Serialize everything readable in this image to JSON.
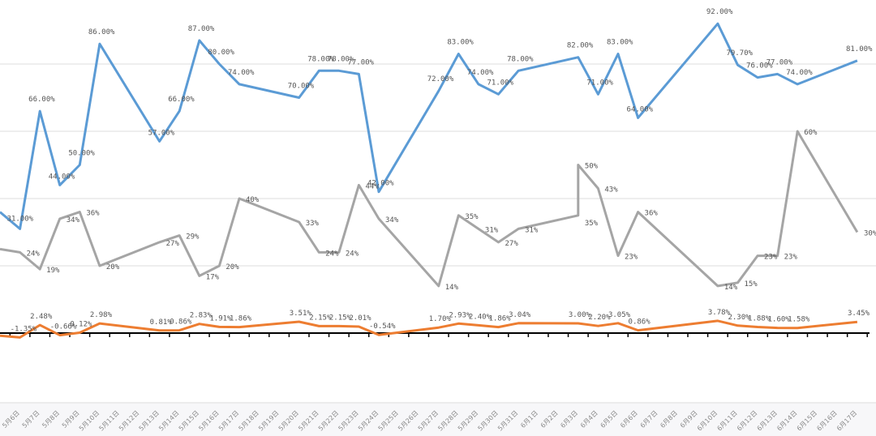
{
  "chart_data": {
    "type": "line",
    "title": "",
    "xlabel": "",
    "ylabel": "",
    "grid": true,
    "legend": "none",
    "categories": [
      "",
      "5月6日",
      "5月7日",
      "5月8日",
      "5月9日",
      "5月10日",
      "5月11日",
      "5月12日",
      "5月13日",
      "5月14日",
      "5月15日",
      "5月16日",
      "5月17日",
      "5月18日",
      "5月19日",
      "5月20日",
      "5月21日",
      "5月22日",
      "5月23日",
      "5月24日",
      "5月25日",
      "5月26日",
      "5月27日",
      "5月28日",
      "5月29日",
      "5月30日",
      "5月31日",
      "6月1日",
      "6月2日",
      "6月3日",
      "6月4日",
      "6月5日",
      "6月6日",
      "6月7日",
      "6月8日",
      "6月9日",
      "6月10日",
      "6月11日",
      "6月12日",
      "6月13日",
      "6月14日",
      "6月15日",
      "6月16日",
      "6月17日"
    ],
    "primary_axis": {
      "ylim": [
        0,
        100
      ],
      "gridlines": [
        20,
        40,
        60,
        80
      ]
    },
    "secondary_axis": {
      "ylim": [
        -2,
        100
      ]
    },
    "series": [
      {
        "name": "series-blue",
        "color": "#5b9bd5",
        "axis": "primary",
        "points": [
          {
            "i": 0,
            "v": 36,
            "label": null
          },
          {
            "i": 1,
            "v": 31,
            "label": "31.00%"
          },
          {
            "i": 2,
            "v": 66,
            "label": "66.00%"
          },
          {
            "i": 3,
            "v": 44,
            "label": "44.00%"
          },
          {
            "i": 4,
            "v": 50,
            "label": "50.00%"
          },
          {
            "i": 5,
            "v": 86,
            "label": "86.00%"
          },
          {
            "i": 8,
            "v": 57,
            "label": "57.00%"
          },
          {
            "i": 9,
            "v": 66,
            "label": "66.00%"
          },
          {
            "i": 10,
            "v": 87,
            "label": "87.00%"
          },
          {
            "i": 11,
            "v": 80,
            "label": "80.00%"
          },
          {
            "i": 12,
            "v": 74,
            "label": "74.00%"
          },
          {
            "i": 15,
            "v": 70,
            "label": "70.00%"
          },
          {
            "i": 16,
            "v": 78,
            "label": "78.00%"
          },
          {
            "i": 17,
            "v": 78,
            "label": "78.00%"
          },
          {
            "i": 18,
            "v": 77,
            "label": "77.00%"
          },
          {
            "i": 19,
            "v": 42,
            "label": "42.00%"
          },
          {
            "i": 22,
            "v": 72,
            "label": "72.00%"
          },
          {
            "i": 23,
            "v": 83,
            "label": "83.00%"
          },
          {
            "i": 24,
            "v": 74,
            "label": "74.00%"
          },
          {
            "i": 25,
            "v": 71,
            "label": "71.00%"
          },
          {
            "i": 26,
            "v": 78,
            "label": "78.00%"
          },
          {
            "i": 29,
            "v": 82,
            "label": "82.00%"
          },
          {
            "i": 30,
            "v": 71,
            "label": "71.00%"
          },
          {
            "i": 31,
            "v": 83,
            "label": "83.00%"
          },
          {
            "i": 32,
            "v": 64,
            "label": "64.00%"
          },
          {
            "i": 36,
            "v": 92,
            "label": "92.00%"
          },
          {
            "i": 37,
            "v": 79.7,
            "label": "79.70%"
          },
          {
            "i": 38,
            "v": 76,
            "label": "76.00%"
          },
          {
            "i": 39,
            "v": 77,
            "label": "77.00%"
          },
          {
            "i": 40,
            "v": 74,
            "label": "74.00%"
          },
          {
            "i": 43,
            "v": 81,
            "label": "81.00%"
          }
        ]
      },
      {
        "name": "series-gray",
        "color": "#a5a5a5",
        "axis": "primary",
        "points": [
          {
            "i": 0,
            "v": 25,
            "label": null
          },
          {
            "i": 1,
            "v": 24,
            "label": "24%"
          },
          {
            "i": 2,
            "v": 19,
            "label": "19%"
          },
          {
            "i": 3,
            "v": 34,
            "label": "34%"
          },
          {
            "i": 4,
            "v": 36,
            "label": "36%"
          },
          {
            "i": 5,
            "v": 20,
            "label": "20%"
          },
          {
            "i": 8,
            "v": 27,
            "label": "27%"
          },
          {
            "i": 9,
            "v": 29,
            "label": "29%"
          },
          {
            "i": 10,
            "v": 17,
            "label": "17%"
          },
          {
            "i": 11,
            "v": 20,
            "label": "20%"
          },
          {
            "i": 12,
            "v": 40,
            "label": "40%"
          },
          {
            "i": 15,
            "v": 33,
            "label": "33%"
          },
          {
            "i": 16,
            "v": 24,
            "label": "24%"
          },
          {
            "i": 17,
            "v": 24,
            "label": "24%"
          },
          {
            "i": 18,
            "v": 44,
            "label": "44%"
          },
          {
            "i": 19,
            "v": 34,
            "label": "34%"
          },
          {
            "i": 22,
            "v": 14,
            "label": "14%"
          },
          {
            "i": 23,
            "v": 35,
            "label": "35%"
          },
          {
            "i": 24,
            "v": 31,
            "label": "31%"
          },
          {
            "i": 25,
            "v": 27,
            "label": "27%"
          },
          {
            "i": 26,
            "v": 31,
            "label": "31%"
          },
          {
            "i": 29,
            "v": 35,
            "label": "35%"
          },
          {
            "i": 29,
            "v": 50,
            "label": "50%"
          },
          {
            "i": 30,
            "v": 43,
            "label": "43%"
          },
          {
            "i": 31,
            "v": 23,
            "label": "23%"
          },
          {
            "i": 32,
            "v": 36,
            "label": "36%"
          },
          {
            "i": 36,
            "v": 14,
            "label": "14%"
          },
          {
            "i": 37,
            "v": 15,
            "label": "15%"
          },
          {
            "i": 38,
            "v": 23,
            "label": "23%"
          },
          {
            "i": 39,
            "v": 23,
            "label": "23%"
          },
          {
            "i": 40,
            "v": 60,
            "label": "60%"
          },
          {
            "i": 43,
            "v": 30,
            "label": "30%"
          }
        ]
      },
      {
        "name": "series-orange",
        "color": "#ed7d31",
        "axis": "secondary",
        "points": [
          {
            "i": 0,
            "v": -0.8,
            "label": null
          },
          {
            "i": 1,
            "v": -1.35,
            "label": "-1.35%"
          },
          {
            "i": 2,
            "v": 2.48,
            "label": "2.48%"
          },
          {
            "i": 3,
            "v": -0.66,
            "label": "-0.66%"
          },
          {
            "i": 4,
            "v": 0.12,
            "label": "0.12%"
          },
          {
            "i": 5,
            "v": 2.98,
            "label": "2.98%"
          },
          {
            "i": 8,
            "v": 0.81,
            "label": "0.81%"
          },
          {
            "i": 9,
            "v": 0.86,
            "label": "0.86%"
          },
          {
            "i": 10,
            "v": 2.83,
            "label": "2.83%"
          },
          {
            "i": 11,
            "v": 1.91,
            "label": "1.91%"
          },
          {
            "i": 12,
            "v": 1.86,
            "label": "1.86%"
          },
          {
            "i": 15,
            "v": 3.51,
            "label": "3.51%"
          },
          {
            "i": 16,
            "v": 2.15,
            "label": "2.15%"
          },
          {
            "i": 17,
            "v": 2.15,
            "label": "2.15%"
          },
          {
            "i": 18,
            "v": 2.01,
            "label": "2.01%"
          },
          {
            "i": 19,
            "v": -0.54,
            "label": "-0.54%"
          },
          {
            "i": 22,
            "v": 1.7,
            "label": "1.70%"
          },
          {
            "i": 23,
            "v": 2.93,
            "label": "2.93%"
          },
          {
            "i": 24,
            "v": 2.4,
            "label": "2.40%"
          },
          {
            "i": 25,
            "v": 1.86,
            "label": "1.86%"
          },
          {
            "i": 26,
            "v": 3.04,
            "label": "3.04%"
          },
          {
            "i": 29,
            "v": 3.0,
            "label": "3.00%"
          },
          {
            "i": 30,
            "v": 2.2,
            "label": "2.20%"
          },
          {
            "i": 31,
            "v": 3.05,
            "label": "3.05%"
          },
          {
            "i": 32,
            "v": 0.86,
            "label": "0.86%"
          },
          {
            "i": 36,
            "v": 3.78,
            "label": "3.78%"
          },
          {
            "i": 37,
            "v": 2.3,
            "label": "2.30%"
          },
          {
            "i": 38,
            "v": 1.88,
            "label": "1.88%"
          },
          {
            "i": 39,
            "v": 1.6,
            "label": "1.60%"
          },
          {
            "i": 40,
            "v": 1.58,
            "label": "1.58%"
          },
          {
            "i": 43,
            "v": 3.45,
            "label": "3.45%"
          }
        ]
      }
    ]
  }
}
